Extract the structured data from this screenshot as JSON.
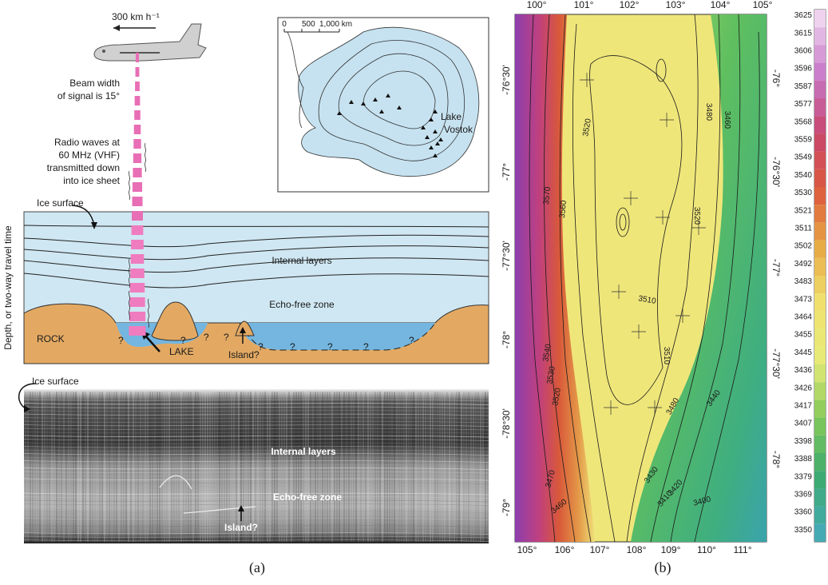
{
  "panel_a": {
    "speed": "300 km h⁻¹",
    "beam_width": [
      "Beam width",
      "of signal is 15°"
    ],
    "radio_waves": [
      "Radio waves at",
      "60 MHz (VHF)",
      "transmitted down",
      "into ice sheet"
    ],
    "map": {
      "scale": [
        "0",
        "500",
        "1,000 km"
      ],
      "lake": [
        "Lake",
        "Vostok"
      ]
    },
    "cross_section": {
      "ice_surface": "Ice surface",
      "internal_layers": "Internal layers",
      "echo_free_zone": "Echo-free zone",
      "rock": "ROCK",
      "lake": "LAKE",
      "island": "Island?",
      "y_axis": "Depth, or two-way travel time",
      "question_marks": [
        "?",
        "?",
        "?",
        "?",
        "?",
        "?",
        "?",
        "?",
        "?"
      ]
    },
    "radar": {
      "ice_surface": "Ice surface",
      "internal_layers": "Internal layers",
      "echo_free_zone": "Echo-free zone",
      "island": "Island?"
    },
    "caption": "(a)"
  },
  "panel_b": {
    "top_ticks": [
      "100°",
      "101°",
      "102°",
      "103°",
      "104°",
      "105°"
    ],
    "bottom_ticks": [
      "105°",
      "106°",
      "107°",
      "108°",
      "109°",
      "110°",
      "111°"
    ],
    "left_ticks": [
      "-76°30'",
      "-77°",
      "-77°30'",
      "-78°",
      "-78°30'",
      "-79°"
    ],
    "right_ticks": [
      "-76°",
      "-76°30'",
      "-77°",
      "-77°30'",
      "-78°"
    ],
    "contour_labels": [
      "3570",
      "3560",
      "3520",
      "3480",
      "3460",
      "3520",
      "3510",
      "3510",
      "3540",
      "3530",
      "3520",
      "3480",
      "3440",
      "3470",
      "3460",
      "3430",
      "3420",
      "3410",
      "3400"
    ],
    "colorbar": [
      "3625",
      "3615",
      "3606",
      "3596",
      "3587",
      "3577",
      "3568",
      "3559",
      "3549",
      "3540",
      "3530",
      "3521",
      "3511",
      "3502",
      "3492",
      "3483",
      "3473",
      "3464",
      "3455",
      "3445",
      "3436",
      "3426",
      "3417",
      "3407",
      "3398",
      "3388",
      "3379",
      "3369",
      "3360",
      "3350"
    ],
    "caption": "(b)"
  }
}
